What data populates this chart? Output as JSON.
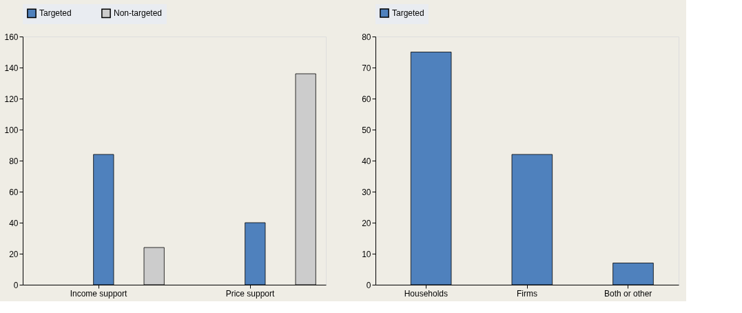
{
  "chart_data": [
    {
      "type": "bar",
      "categories": [
        "Income support",
        "Price support"
      ],
      "ylim": [
        0,
        160
      ],
      "yticks": [
        0,
        20,
        40,
        60,
        80,
        100,
        120,
        140,
        160
      ],
      "grid": false,
      "legend": "top",
      "series": [
        {
          "name": "Targeted",
          "color": "#4f81bd",
          "values": [
            84,
            40
          ]
        },
        {
          "name": "Non-targeted",
          "color": "#cccccc",
          "values": [
            24,
            136
          ]
        }
      ]
    },
    {
      "type": "bar",
      "categories": [
        "Households",
        "Firms",
        "Both or other"
      ],
      "ylim": [
        0,
        80
      ],
      "yticks": [
        0,
        10,
        20,
        30,
        40,
        50,
        60,
        70,
        80
      ],
      "grid": false,
      "legend": "top",
      "series": [
        {
          "name": "Targeted",
          "color": "#4f81bd",
          "values": [
            75,
            42,
            7
          ]
        }
      ]
    }
  ]
}
